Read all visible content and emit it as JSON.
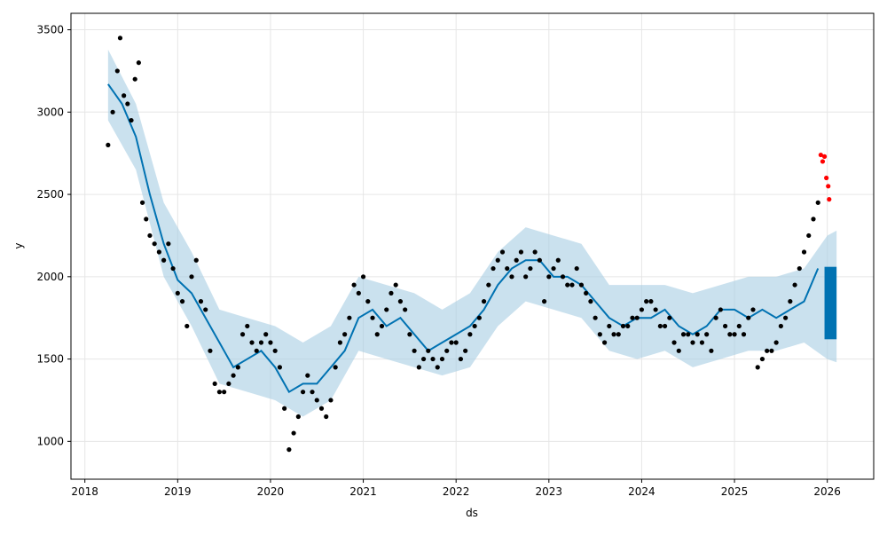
{
  "chart_data": {
    "type": "scatter",
    "xlabel": "ds",
    "ylabel": "y",
    "xlim": [
      2017.85,
      2026.5
    ],
    "ylim": [
      770,
      3600
    ],
    "grid": true,
    "x_ticks": [
      2018,
      2019,
      2020,
      2021,
      2022,
      2023,
      2024,
      2025,
      2026
    ],
    "y_ticks": [
      1000,
      1500,
      2000,
      2500,
      3000,
      3500
    ],
    "colors": {
      "observed": "#000000",
      "holdout": "#ff0000",
      "forecast": "#0072B2",
      "uncertainty": "#a6cde3"
    },
    "series": [
      {
        "role": "observed points",
        "x": [
          2018.25,
          2018.3,
          2018.35,
          2018.38,
          2018.42,
          2018.46,
          2018.5,
          2018.54,
          2018.58,
          2018.62,
          2018.66,
          2018.7,
          2018.75,
          2018.8,
          2018.85,
          2018.9,
          2018.95,
          2019.0,
          2019.05,
          2019.1,
          2019.15,
          2019.2,
          2019.25,
          2019.3,
          2019.35,
          2019.4,
          2019.45,
          2019.5,
          2019.55,
          2019.6,
          2019.65,
          2019.7,
          2019.75,
          2019.8,
          2019.85,
          2019.9,
          2019.95,
          2020.0,
          2020.05,
          2020.1,
          2020.15,
          2020.2,
          2020.25,
          2020.3,
          2020.35,
          2020.4,
          2020.45,
          2020.5,
          2020.55,
          2020.6,
          2020.65,
          2020.7,
          2020.75,
          2020.8,
          2020.85,
          2020.9,
          2020.95,
          2021.0,
          2021.05,
          2021.1,
          2021.15,
          2021.2,
          2021.25,
          2021.3,
          2021.35,
          2021.4,
          2021.45,
          2021.5,
          2021.55,
          2021.6,
          2021.65,
          2021.7,
          2021.75,
          2021.8,
          2021.85,
          2021.9,
          2021.95,
          2022.0,
          2022.05,
          2022.1,
          2022.15,
          2022.2,
          2022.25,
          2022.3,
          2022.35,
          2022.4,
          2022.45,
          2022.5,
          2022.55,
          2022.6,
          2022.65,
          2022.7,
          2022.75,
          2022.8,
          2022.85,
          2022.9,
          2022.95,
          2023.0,
          2023.05,
          2023.1,
          2023.15,
          2023.2,
          2023.25,
          2023.3,
          2023.35,
          2023.4,
          2023.45,
          2023.5,
          2023.55,
          2023.6,
          2023.65,
          2023.7,
          2023.75,
          2023.8,
          2023.85,
          2023.9,
          2023.95,
          2024.0,
          2024.05,
          2024.1,
          2024.15,
          2024.2,
          2024.25,
          2024.3,
          2024.35,
          2024.4,
          2024.45,
          2024.5,
          2024.55,
          2024.6,
          2024.65,
          2024.7,
          2024.75,
          2024.8,
          2024.85,
          2024.9,
          2024.95,
          2025.0,
          2025.05,
          2025.1,
          2025.15,
          2025.2,
          2025.25,
          2025.3,
          2025.35,
          2025.4,
          2025.45,
          2025.5,
          2025.55,
          2025.6,
          2025.65,
          2025.7,
          2025.75,
          2025.8,
          2025.85,
          2025.9
        ],
        "y": [
          2800,
          3000,
          3250,
          3450,
          3100,
          3050,
          2950,
          3200,
          3300,
          2450,
          2350,
          2250,
          2200,
          2150,
          2100,
          2200,
          2050,
          1900,
          1850,
          1700,
          2000,
          2100,
          1850,
          1800,
          1550,
          1350,
          1300,
          1300,
          1350,
          1400,
          1450,
          1650,
          1700,
          1600,
          1550,
          1600,
          1650,
          1600,
          1550,
          1450,
          1200,
          950,
          1050,
          1150,
          1300,
          1400,
          1300,
          1250,
          1200,
          1150,
          1250,
          1450,
          1600,
          1650,
          1750,
          1950,
          1900,
          2000,
          1850,
          1750,
          1650,
          1700,
          1800,
          1900,
          1950,
          1850,
          1800,
          1650,
          1550,
          1450,
          1500,
          1550,
          1500,
          1450,
          1500,
          1550,
          1600,
          1600,
          1500,
          1550,
          1650,
          1700,
          1750,
          1850,
          1950,
          2050,
          2100,
          2150,
          2050,
          2000,
          2100,
          2150,
          2000,
          2050,
          2150,
          2100,
          1850,
          2000,
          2050,
          2100,
          2000,
          1950,
          1950,
          2050,
          1950,
          1900,
          1850,
          1750,
          1650,
          1600,
          1700,
          1650,
          1650,
          1700,
          1700,
          1750,
          1750,
          1800,
          1850,
          1850,
          1800,
          1700,
          1700,
          1750,
          1600,
          1550,
          1650,
          1650,
          1600,
          1650,
          1600,
          1650,
          1550,
          1750,
          1800,
          1700,
          1650,
          1650,
          1700,
          1650,
          1750,
          1800,
          1450,
          1500,
          1550,
          1550,
          1600,
          1700,
          1750,
          1850,
          1950,
          2050,
          2150,
          2250,
          2350,
          2450
        ]
      },
      {
        "role": "holdout points",
        "x": [
          2025.93,
          2025.95,
          2025.97,
          2025.99,
          2026.01,
          2026.02
        ],
        "y": [
          2740,
          2700,
          2730,
          2600,
          2550,
          2470
        ]
      },
      {
        "role": "forecast line",
        "x": [
          2018.25,
          2018.4,
          2018.55,
          2018.7,
          2018.85,
          2019.0,
          2019.15,
          2019.3,
          2019.45,
          2019.6,
          2019.75,
          2019.9,
          2020.05,
          2020.2,
          2020.35,
          2020.5,
          2020.65,
          2020.8,
          2020.95,
          2021.1,
          2021.25,
          2021.4,
          2021.55,
          2021.7,
          2021.85,
          2022.0,
          2022.15,
          2022.3,
          2022.45,
          2022.6,
          2022.75,
          2022.9,
          2023.05,
          2023.2,
          2023.35,
          2023.5,
          2023.65,
          2023.8,
          2023.95,
          2024.1,
          2024.25,
          2024.4,
          2024.55,
          2024.7,
          2024.85,
          2025.0,
          2025.15,
          2025.3,
          2025.45,
          2025.6,
          2025.75,
          2025.9
        ],
        "y": [
          3170,
          3050,
          2850,
          2500,
          2200,
          1980,
          1900,
          1750,
          1600,
          1450,
          1500,
          1550,
          1450,
          1300,
          1350,
          1350,
          1450,
          1550,
          1750,
          1800,
          1700,
          1750,
          1650,
          1550,
          1600,
          1650,
          1700,
          1800,
          1950,
          2050,
          2100,
          2100,
          2000,
          2000,
          1950,
          1850,
          1750,
          1700,
          1750,
          1750,
          1800,
          1700,
          1650,
          1700,
          1800,
          1800,
          1750,
          1800,
          1750,
          1800,
          1850,
          2050
        ]
      },
      {
        "role": "uncertainty band",
        "x": [
          2018.25,
          2018.55,
          2018.85,
          2019.15,
          2019.45,
          2019.75,
          2020.05,
          2020.35,
          2020.65,
          2020.95,
          2021.25,
          2021.55,
          2021.85,
          2022.15,
          2022.45,
          2022.75,
          2023.05,
          2023.35,
          2023.65,
          2023.95,
          2024.25,
          2024.55,
          2024.85,
          2025.15,
          2025.45,
          2025.75,
          2026.0,
          2026.1
        ],
        "lower": [
          2950,
          2650,
          2000,
          1700,
          1350,
          1300,
          1250,
          1150,
          1250,
          1550,
          1500,
          1450,
          1400,
          1450,
          1700,
          1850,
          1800,
          1750,
          1550,
          1500,
          1550,
          1450,
          1500,
          1550,
          1550,
          1600,
          1500,
          1480
        ],
        "upper": [
          3380,
          3050,
          2450,
          2150,
          1800,
          1750,
          1700,
          1600,
          1700,
          2000,
          1950,
          1900,
          1800,
          1900,
          2150,
          2300,
          2250,
          2200,
          1950,
          1950,
          1950,
          1900,
          1950,
          2000,
          2000,
          2050,
          2250,
          2280
        ]
      },
      {
        "role": "forecast block",
        "x": [
          2025.97,
          2026.1
        ],
        "lower": [
          1620,
          1700
        ],
        "upper": [
          2000,
          2060
        ]
      }
    ]
  }
}
